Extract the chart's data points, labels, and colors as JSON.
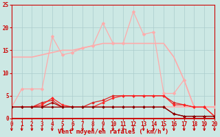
{
  "background_color": "#cce8e4",
  "grid_color": "#aacccc",
  "xlabel": "Vent moyen/en rafales ( km/h )",
  "xlabel_color": "#cc0000",
  "tick_color": "#cc0000",
  "arrow_color": "#cc0000",
  "xlim": [
    0,
    20
  ],
  "ylim": [
    0,
    25
  ],
  "xticks": [
    0,
    1,
    2,
    3,
    4,
    5,
    6,
    7,
    8,
    9,
    10,
    11,
    12,
    13,
    14,
    15,
    16,
    17,
    18,
    19,
    20
  ],
  "yticks": [
    0,
    5,
    10,
    15,
    20,
    25
  ],
  "series": [
    {
      "x": [
        0,
        1,
        2,
        3,
        4,
        5,
        6,
        7,
        8,
        9,
        10,
        11,
        12,
        13,
        14,
        15,
        16,
        17,
        18,
        19,
        20
      ],
      "y": [
        13.5,
        13.5,
        13.5,
        14.0,
        14.5,
        15.0,
        15.0,
        15.5,
        16.0,
        16.5,
        16.5,
        16.5,
        16.5,
        16.5,
        16.5,
        16.5,
        13.5,
        8.5,
        2.5,
        2.5,
        2.5
      ],
      "color": "#ffaaaa",
      "lw": 1.2,
      "marker": null,
      "zorder": 2
    },
    {
      "x": [
        0,
        1,
        2,
        3,
        4,
        5,
        6,
        7,
        8,
        9,
        10,
        11,
        12,
        13,
        14,
        15,
        16,
        17,
        18,
        19,
        20
      ],
      "y": [
        2.5,
        2.5,
        2.5,
        2.5,
        2.5,
        2.5,
        2.5,
        2.5,
        2.5,
        2.5,
        2.5,
        2.5,
        2.5,
        2.5,
        2.5,
        2.5,
        2.5,
        2.5,
        2.5,
        2.5,
        2.5
      ],
      "color": "#ffaaaa",
      "lw": 1.2,
      "marker": null,
      "zorder": 2
    },
    {
      "x": [
        0,
        1,
        2,
        3,
        4,
        5,
        6,
        7,
        8,
        9,
        10,
        11,
        12,
        13,
        14,
        15,
        16,
        17,
        18,
        19,
        20
      ],
      "y": [
        2.5,
        6.5,
        6.5,
        6.5,
        18.0,
        14.0,
        14.5,
        15.5,
        16.0,
        21.0,
        16.5,
        16.5,
        23.5,
        18.5,
        19.0,
        5.5,
        5.5,
        8.5,
        2.5,
        2.5,
        2.5
      ],
      "color": "#ffaaaa",
      "lw": 0.9,
      "marker": "D",
      "markersize": 2.5,
      "zorder": 3
    },
    {
      "x": [
        0,
        1,
        2,
        3,
        4,
        5,
        6,
        7,
        8,
        9,
        10,
        11,
        12,
        13,
        14,
        15,
        16,
        17,
        18,
        19,
        20
      ],
      "y": [
        2.5,
        2.5,
        2.5,
        3.5,
        4.0,
        2.5,
        2.5,
        2.5,
        3.5,
        4.0,
        5.0,
        5.0,
        5.0,
        5.0,
        5.0,
        5.0,
        3.5,
        3.0,
        2.5,
        2.5,
        0.5
      ],
      "color": "#dd2222",
      "lw": 0.9,
      "marker": "D",
      "markersize": 2.0,
      "zorder": 4
    },
    {
      "x": [
        0,
        1,
        2,
        3,
        4,
        5,
        6,
        7,
        8,
        9,
        10,
        11,
        12,
        13,
        14,
        15,
        16,
        17,
        18,
        19,
        20
      ],
      "y": [
        2.5,
        2.5,
        2.5,
        3.0,
        4.5,
        3.0,
        2.5,
        2.5,
        2.5,
        3.5,
        4.5,
        5.0,
        5.0,
        5.0,
        5.0,
        5.0,
        3.0,
        3.0,
        2.5,
        2.5,
        0.5
      ],
      "color": "#ff2222",
      "lw": 0.9,
      "marker": "D",
      "markersize": 2.0,
      "zorder": 4
    },
    {
      "x": [
        0,
        1,
        2,
        3,
        4,
        5,
        6,
        7,
        8,
        9,
        10,
        11,
        12,
        13,
        14,
        15,
        16,
        17,
        18,
        19,
        20
      ],
      "y": [
        2.5,
        2.5,
        2.5,
        2.5,
        3.5,
        2.5,
        2.5,
        2.5,
        2.5,
        2.5,
        2.5,
        2.5,
        2.5,
        2.5,
        2.5,
        2.5,
        1.0,
        0.5,
        0.5,
        0.5,
        0.5
      ],
      "color": "#aa0000",
      "lw": 0.9,
      "marker": "D",
      "markersize": 2.0,
      "zorder": 4
    },
    {
      "x": [
        0,
        1,
        2,
        3,
        4,
        5,
        6,
        7,
        8,
        9,
        10,
        11,
        12,
        13,
        14,
        15,
        16,
        17,
        18,
        19,
        20
      ],
      "y": [
        2.5,
        2.5,
        2.5,
        2.5,
        2.5,
        2.5,
        2.5,
        2.5,
        2.5,
        2.5,
        2.5,
        2.5,
        2.5,
        2.5,
        2.5,
        2.5,
        1.0,
        0.5,
        0.5,
        0.5,
        0.5
      ],
      "color": "#880000",
      "lw": 0.9,
      "marker": "D",
      "markersize": 2.0,
      "zorder": 4
    }
  ]
}
